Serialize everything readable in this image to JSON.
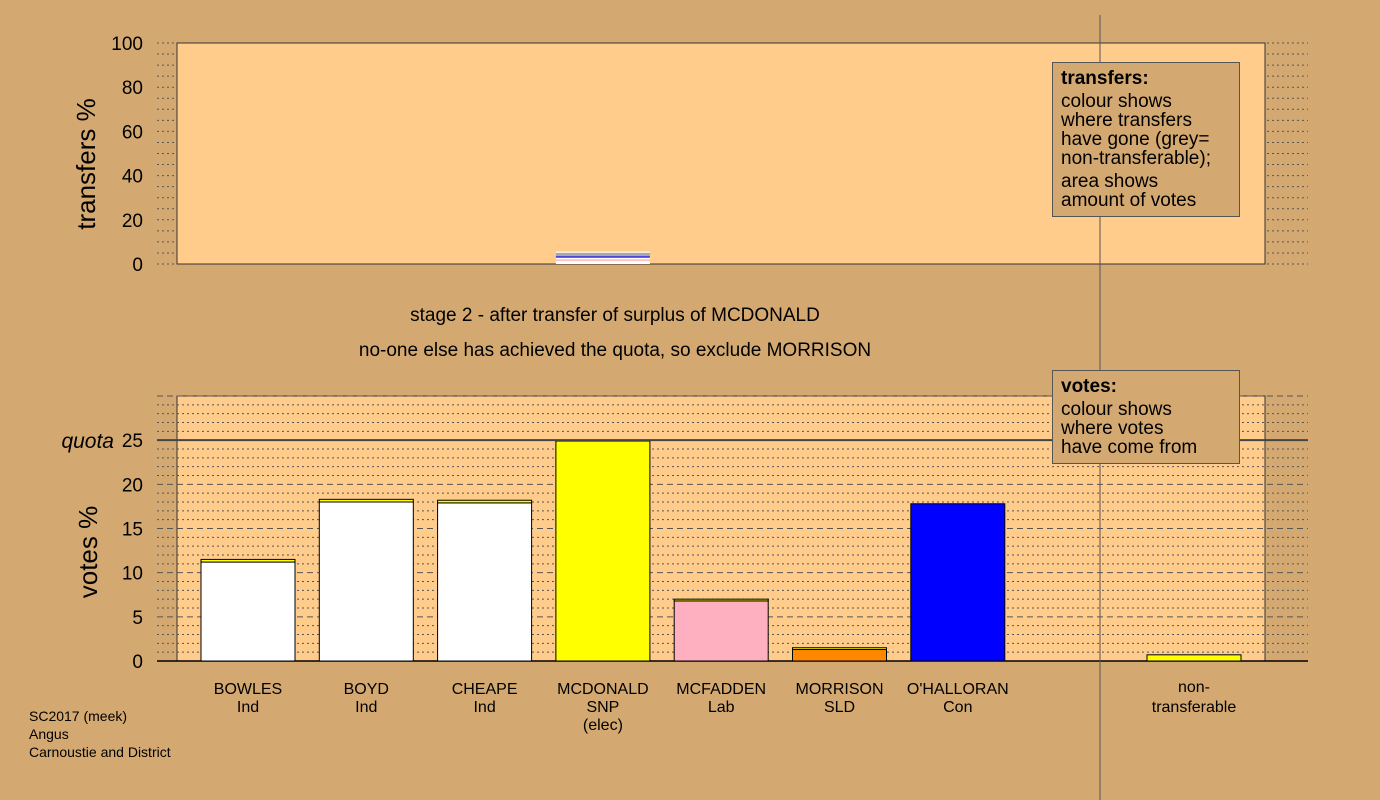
{
  "captions": {
    "stage": "stage 2 - after transfer of surplus of MCDONALD",
    "action": "no-one else has achieved the quota, so exclude MORRISON"
  },
  "transfers_legend": {
    "title": "transfers:",
    "lines": [
      "colour shows",
      "where transfers",
      "have gone (grey=",
      "non-transferable);",
      "area shows",
      "amount of votes"
    ]
  },
  "votes_legend": {
    "title": "votes:",
    "lines": [
      "colour shows",
      "where votes",
      "have come from"
    ]
  },
  "footer": {
    "election": "SC2017 (meek)",
    "council": "Angus",
    "ward": "Carnoustie and District"
  },
  "colors": {
    "background": "#d4a971",
    "plot_bg": "#ffcc8c",
    "transferred_from_snp": "#ffff00"
  },
  "chart_data": [
    {
      "type": "bar",
      "ylabel": "transfers %",
      "ylim": [
        0,
        100
      ],
      "yticks": [
        0,
        20,
        40,
        60,
        80,
        100
      ],
      "grid": "dotted",
      "bars": [
        {
          "category": "MCDONALD",
          "segments": [
            {
              "value": 1.0,
              "color": "#ffffff"
            },
            {
              "value": 0.5,
              "color": "#ffffff"
            },
            {
              "value": 0.6,
              "color": "#ffb0c0"
            },
            {
              "value": 0.8,
              "color": "#ffffff"
            },
            {
              "value": 0.6,
              "color": "#0000ff"
            },
            {
              "value": 1.6,
              "color": "#a8a8a8"
            },
            {
              "value": 0.5,
              "color": "#ffffff"
            }
          ]
        }
      ]
    },
    {
      "type": "bar",
      "ylabel": "votes %",
      "ylim": [
        0,
        30
      ],
      "yticks": [
        0,
        5,
        10,
        15,
        20,
        25
      ],
      "grid": "dashed",
      "quota": 25,
      "quota_label": "quota",
      "categories": [
        {
          "name": "BOWLES",
          "party": "Ind",
          "note": ""
        },
        {
          "name": "BOYD",
          "party": "Ind",
          "note": ""
        },
        {
          "name": "CHEAPE",
          "party": "Ind",
          "note": ""
        },
        {
          "name": "MCDONALD",
          "party": "SNP",
          "note": "(elec)"
        },
        {
          "name": "MCFADDEN",
          "party": "Lab",
          "note": ""
        },
        {
          "name": "MORRISON",
          "party": "SLD",
          "note": ""
        },
        {
          "name": "O'HALLORAN",
          "party": "Con",
          "note": ""
        }
      ],
      "bars": [
        {
          "category": "BOWLES",
          "first_pref": 11.2,
          "transferred": 0.3,
          "color": "#ffffff"
        },
        {
          "category": "BOYD",
          "first_pref": 18.0,
          "transferred": 0.3,
          "color": "#ffffff"
        },
        {
          "category": "CHEAPE",
          "first_pref": 17.9,
          "transferred": 0.3,
          "color": "#ffffff"
        },
        {
          "category": "MCDONALD",
          "first_pref": 24.9,
          "transferred": 0.0,
          "color": "#ffff00"
        },
        {
          "category": "MCFADDEN",
          "first_pref": 6.8,
          "transferred": 0.2,
          "color": "#ffb0c0"
        },
        {
          "category": "MORRISON",
          "first_pref": 1.3,
          "transferred": 0.2,
          "color": "#ff8800"
        },
        {
          "category": "O'HALLORAN",
          "first_pref": 17.8,
          "transferred": 0.0,
          "color": "#0000ff"
        }
      ],
      "non_transferable": {
        "label_line1": "non-",
        "label_line2": "transferable",
        "value": 0.7,
        "color": "#ffff00"
      }
    }
  ]
}
